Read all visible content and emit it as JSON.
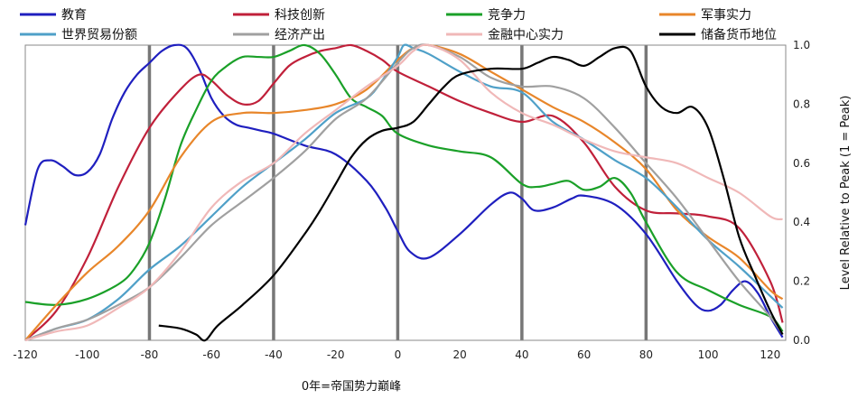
{
  "chart_data": {
    "type": "line",
    "xlabel": "0年=帝国势力巅峰",
    "ylabel": "Level Relative to Peak (1 = Peak)",
    "xlim": [
      -120,
      125
    ],
    "ylim": [
      0,
      1.0
    ],
    "xticks": [
      "-120",
      "-100",
      "-80",
      "-60",
      "-40",
      "-20",
      "0",
      "20",
      "40",
      "60",
      "80",
      "100",
      "120"
    ],
    "yticks": [
      "0.0",
      "0.2",
      "0.4",
      "0.6",
      "0.8",
      "1.0"
    ],
    "vertical_markers": [
      -80,
      -40,
      0,
      40,
      80
    ],
    "grid": false,
    "legend_position": "top",
    "series": [
      {
        "name": "教育",
        "color": "#1f1fbf",
        "x": [
          -120,
          -116,
          -112,
          -108,
          -104,
          -100,
          -96,
          -92,
          -88,
          -84,
          -80,
          -76,
          -72,
          -68,
          -64,
          -60,
          -56,
          -52,
          -48,
          -44,
          -40,
          -30,
          -20,
          -10,
          -4,
          0,
          4,
          10,
          20,
          30,
          36,
          40,
          44,
          50,
          56,
          60,
          70,
          80,
          90,
          96,
          100,
          104,
          108,
          112,
          116,
          120,
          124
        ],
        "y": [
          0.39,
          0.58,
          0.61,
          0.59,
          0.56,
          0.57,
          0.63,
          0.75,
          0.84,
          0.9,
          0.94,
          0.98,
          1.0,
          0.99,
          0.92,
          0.82,
          0.76,
          0.73,
          0.72,
          0.71,
          0.7,
          0.66,
          0.63,
          0.54,
          0.45,
          0.37,
          0.3,
          0.28,
          0.36,
          0.46,
          0.5,
          0.48,
          0.44,
          0.45,
          0.48,
          0.49,
          0.46,
          0.36,
          0.2,
          0.12,
          0.1,
          0.12,
          0.17,
          0.2,
          0.16,
          0.08,
          0.01
        ]
      },
      {
        "name": "科技创新",
        "color": "#c0203a",
        "x": [
          -120,
          -110,
          -100,
          -90,
          -80,
          -70,
          -64,
          -60,
          -55,
          -50,
          -45,
          -40,
          -35,
          -30,
          -25,
          -20,
          -15,
          -10,
          -5,
          0,
          10,
          20,
          30,
          40,
          50,
          60,
          70,
          80,
          90,
          100,
          110,
          120,
          124
        ],
        "y": [
          0.0,
          0.1,
          0.28,
          0.52,
          0.72,
          0.85,
          0.9,
          0.88,
          0.83,
          0.8,
          0.81,
          0.87,
          0.93,
          0.96,
          0.98,
          0.99,
          1.0,
          0.98,
          0.95,
          0.91,
          0.86,
          0.81,
          0.77,
          0.74,
          0.76,
          0.67,
          0.52,
          0.44,
          0.43,
          0.42,
          0.38,
          0.2,
          0.06
        ]
      },
      {
        "name": "竞争力",
        "color": "#1aa028",
        "x": [
          -120,
          -110,
          -100,
          -90,
          -85,
          -80,
          -75,
          -70,
          -65,
          -60,
          -55,
          -50,
          -45,
          -40,
          -35,
          -30,
          -25,
          -20,
          -15,
          -10,
          -5,
          0,
          10,
          20,
          30,
          40,
          45,
          50,
          55,
          60,
          65,
          70,
          75,
          80,
          90,
          100,
          110,
          120,
          124
        ],
        "y": [
          0.13,
          0.12,
          0.14,
          0.19,
          0.24,
          0.33,
          0.48,
          0.66,
          0.78,
          0.88,
          0.93,
          0.96,
          0.96,
          0.96,
          0.98,
          1.0,
          0.97,
          0.9,
          0.82,
          0.79,
          0.76,
          0.7,
          0.66,
          0.64,
          0.62,
          0.53,
          0.52,
          0.53,
          0.54,
          0.51,
          0.52,
          0.55,
          0.5,
          0.4,
          0.23,
          0.17,
          0.12,
          0.08,
          0.03
        ]
      },
      {
        "name": "军事实力",
        "color": "#e8862a",
        "x": [
          -120,
          -110,
          -100,
          -90,
          -80,
          -70,
          -60,
          -50,
          -40,
          -30,
          -20,
          -10,
          0,
          5,
          10,
          20,
          30,
          40,
          50,
          60,
          70,
          80,
          90,
          100,
          110,
          120,
          124
        ],
        "y": [
          0.0,
          0.12,
          0.23,
          0.32,
          0.44,
          0.62,
          0.74,
          0.77,
          0.77,
          0.78,
          0.8,
          0.85,
          0.95,
          0.99,
          1.0,
          0.97,
          0.91,
          0.85,
          0.79,
          0.74,
          0.67,
          0.58,
          0.44,
          0.35,
          0.28,
          0.17,
          0.14
        ]
      },
      {
        "name": "世界贸易份额",
        "color": "#4fa0c8",
        "x": [
          -120,
          -110,
          -100,
          -90,
          -80,
          -70,
          -60,
          -50,
          -40,
          -30,
          -20,
          -10,
          -5,
          0,
          2,
          5,
          10,
          20,
          30,
          40,
          50,
          60,
          70,
          80,
          90,
          100,
          110,
          120,
          124
        ],
        "y": [
          0.0,
          0.04,
          0.07,
          0.14,
          0.24,
          0.32,
          0.42,
          0.52,
          0.6,
          0.68,
          0.77,
          0.82,
          0.88,
          0.96,
          1.0,
          0.99,
          0.97,
          0.91,
          0.86,
          0.84,
          0.74,
          0.68,
          0.61,
          0.55,
          0.45,
          0.34,
          0.25,
          0.15,
          0.11
        ]
      },
      {
        "name": "经济产出",
        "color": "#a0a0a0",
        "x": [
          -120,
          -110,
          -100,
          -90,
          -80,
          -70,
          -60,
          -50,
          -40,
          -30,
          -20,
          -10,
          0,
          5,
          10,
          20,
          30,
          40,
          50,
          60,
          70,
          80,
          90,
          100,
          110,
          120,
          124
        ],
        "y": [
          0.0,
          0.04,
          0.07,
          0.12,
          0.18,
          0.28,
          0.39,
          0.47,
          0.55,
          0.64,
          0.75,
          0.82,
          0.94,
          0.99,
          1.0,
          0.96,
          0.89,
          0.86,
          0.86,
          0.82,
          0.72,
          0.6,
          0.48,
          0.34,
          0.2,
          0.08,
          0.02
        ]
      },
      {
        "name": "金融中心实力",
        "color": "#f0b8b8",
        "x": [
          -120,
          -110,
          -100,
          -90,
          -80,
          -70,
          -60,
          -50,
          -40,
          -30,
          -20,
          -10,
          0,
          5,
          10,
          20,
          30,
          40,
          50,
          60,
          70,
          80,
          90,
          100,
          110,
          120,
          124
        ],
        "y": [
          0.0,
          0.03,
          0.05,
          0.11,
          0.18,
          0.3,
          0.45,
          0.54,
          0.6,
          0.7,
          0.78,
          0.86,
          0.93,
          0.98,
          1.0,
          0.95,
          0.84,
          0.77,
          0.73,
          0.68,
          0.64,
          0.62,
          0.6,
          0.55,
          0.5,
          0.42,
          0.41
        ]
      },
      {
        "name": "储备货币地位",
        "color": "#000000",
        "x": [
          -77,
          -70,
          -65,
          -62,
          -58,
          -50,
          -40,
          -30,
          -25,
          -20,
          -15,
          -10,
          -5,
          0,
          5,
          10,
          15,
          20,
          30,
          40,
          45,
          50,
          55,
          60,
          65,
          70,
          75,
          80,
          85,
          90,
          95,
          100,
          105,
          110,
          115,
          120,
          124
        ],
        "y": [
          0.05,
          0.04,
          0.02,
          0.0,
          0.05,
          0.12,
          0.22,
          0.36,
          0.44,
          0.53,
          0.62,
          0.68,
          0.71,
          0.72,
          0.74,
          0.8,
          0.86,
          0.9,
          0.92,
          0.92,
          0.94,
          0.96,
          0.95,
          0.93,
          0.96,
          0.99,
          0.98,
          0.86,
          0.79,
          0.77,
          0.79,
          0.72,
          0.55,
          0.35,
          0.22,
          0.1,
          0.02
        ]
      }
    ]
  }
}
